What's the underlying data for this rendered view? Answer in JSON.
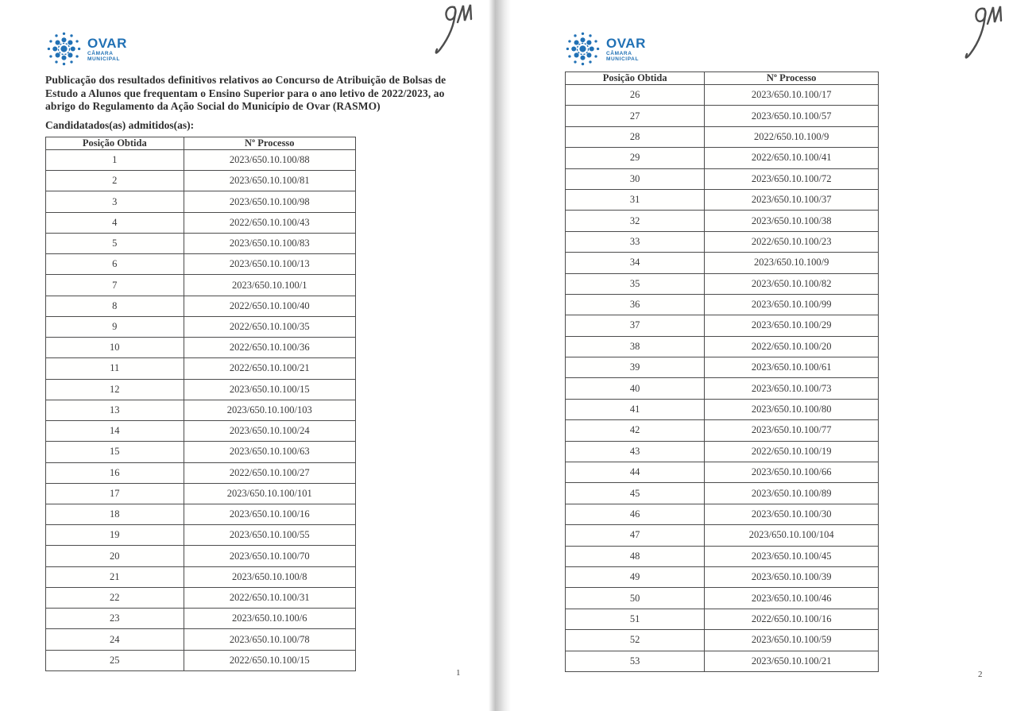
{
  "document": {
    "logo": {
      "name": "OVAR",
      "subtext": "CÂMARA MUNICIPAL",
      "color": "#2171b5",
      "icon": "ovar-rosette-logo"
    },
    "signature_icon": "handwritten-initials-gm",
    "title": "Publicação dos resultados definitivos relativos ao Concurso de Atribuição de Bolsas de Estudo a Alunos que frequentam o Ensino Superior para o ano letivo de 2022/2023, ao abrigo do Regulamento da Ação Social do Município de Ovar (RASMO)",
    "subtitle": "Candidatados(as) admitidos(as):",
    "table_headers": {
      "position": "Posição Obtida",
      "process": "Nº Processo"
    },
    "pages": [
      {
        "page_number": "1",
        "rows": [
          {
            "position": "1",
            "process": "2023/650.10.100/88"
          },
          {
            "position": "2",
            "process": "2023/650.10.100/81"
          },
          {
            "position": "3",
            "process": "2023/650.10.100/98"
          },
          {
            "position": "4",
            "process": "2022/650.10.100/43"
          },
          {
            "position": "5",
            "process": "2023/650.10.100/83"
          },
          {
            "position": "6",
            "process": "2023/650.10.100/13"
          },
          {
            "position": "7",
            "process": "2023/650.10.100/1"
          },
          {
            "position": "8",
            "process": "2022/650.10.100/40"
          },
          {
            "position": "9",
            "process": "2022/650.10.100/35"
          },
          {
            "position": "10",
            "process": "2022/650.10.100/36"
          },
          {
            "position": "11",
            "process": "2022/650.10.100/21"
          },
          {
            "position": "12",
            "process": "2023/650.10.100/15"
          },
          {
            "position": "13",
            "process": "2023/650.10.100/103"
          },
          {
            "position": "14",
            "process": "2023/650.10.100/24"
          },
          {
            "position": "15",
            "process": "2023/650.10.100/63"
          },
          {
            "position": "16",
            "process": "2022/650.10.100/27"
          },
          {
            "position": "17",
            "process": "2023/650.10.100/101"
          },
          {
            "position": "18",
            "process": "2023/650.10.100/16"
          },
          {
            "position": "19",
            "process": "2023/650.10.100/55"
          },
          {
            "position": "20",
            "process": "2023/650.10.100/70"
          },
          {
            "position": "21",
            "process": "2023/650.10.100/8"
          },
          {
            "position": "22",
            "process": "2022/650.10.100/31"
          },
          {
            "position": "23",
            "process": "2023/650.10.100/6"
          },
          {
            "position": "24",
            "process": "2023/650.10.100/78"
          },
          {
            "position": "25",
            "process": "2022/650.10.100/15"
          }
        ]
      },
      {
        "page_number": "2",
        "rows": [
          {
            "position": "26",
            "process": "2023/650.10.100/17"
          },
          {
            "position": "27",
            "process": "2023/650.10.100/57"
          },
          {
            "position": "28",
            "process": "2022/650.10.100/9"
          },
          {
            "position": "29",
            "process": "2022/650.10.100/41"
          },
          {
            "position": "30",
            "process": "2023/650.10.100/72"
          },
          {
            "position": "31",
            "process": "2023/650.10.100/37"
          },
          {
            "position": "32",
            "process": "2023/650.10.100/38"
          },
          {
            "position": "33",
            "process": "2022/650.10.100/23"
          },
          {
            "position": "34",
            "process": "2023/650.10.100/9"
          },
          {
            "position": "35",
            "process": "2023/650.10.100/82"
          },
          {
            "position": "36",
            "process": "2023/650.10.100/99"
          },
          {
            "position": "37",
            "process": "2023/650.10.100/29"
          },
          {
            "position": "38",
            "process": "2022/650.10.100/20"
          },
          {
            "position": "39",
            "process": "2023/650.10.100/61"
          },
          {
            "position": "40",
            "process": "2023/650.10.100/73"
          },
          {
            "position": "41",
            "process": "2023/650.10.100/80"
          },
          {
            "position": "42",
            "process": "2023/650.10.100/77"
          },
          {
            "position": "43",
            "process": "2022/650.10.100/19"
          },
          {
            "position": "44",
            "process": "2023/650.10.100/66"
          },
          {
            "position": "45",
            "process": "2023/650.10.100/89"
          },
          {
            "position": "46",
            "process": "2023/650.10.100/30"
          },
          {
            "position": "47",
            "process": "2023/650.10.100/104"
          },
          {
            "position": "48",
            "process": "2023/650.10.100/45"
          },
          {
            "position": "49",
            "process": "2023/650.10.100/39"
          },
          {
            "position": "50",
            "process": "2023/650.10.100/46"
          },
          {
            "position": "51",
            "process": "2022/650.10.100/16"
          },
          {
            "position": "52",
            "process": "2023/650.10.100/59"
          },
          {
            "position": "53",
            "process": "2023/650.10.100/21"
          }
        ]
      }
    ]
  }
}
